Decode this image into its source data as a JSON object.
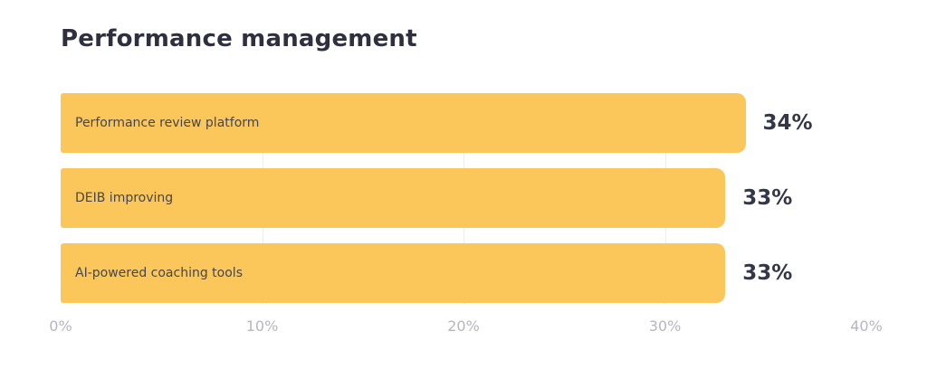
{
  "title": "Performance management",
  "colors": {
    "background": "#ffffff",
    "bar": "#FBC75B",
    "title_text": "#2E3040",
    "bar_label_text": "#45464E",
    "value_text": "#343748",
    "axis_text": "#B5B5C5",
    "gridline": "#EDEDF2"
  },
  "chart_data": {
    "type": "bar",
    "orientation": "horizontal",
    "title": "Performance management",
    "categories": [
      "Performance review platform",
      "DEIB improving",
      "AI-powered coaching tools"
    ],
    "values": [
      34,
      33,
      33
    ],
    "value_labels": [
      "34%",
      "33%",
      "33%"
    ],
    "xlabel": "",
    "ylabel": "",
    "xlim": [
      0,
      40
    ],
    "x_ticks": [
      {
        "value": 0,
        "label": "0%"
      },
      {
        "value": 10,
        "label": "10%"
      },
      {
        "value": 20,
        "label": "20%"
      },
      {
        "value": 30,
        "label": "30%"
      },
      {
        "value": 40,
        "label": "40%"
      }
    ],
    "gridline_ticks": [
      10,
      20,
      30
    ],
    "grid": true,
    "legend": false,
    "bar_color": "#FBC75B"
  }
}
